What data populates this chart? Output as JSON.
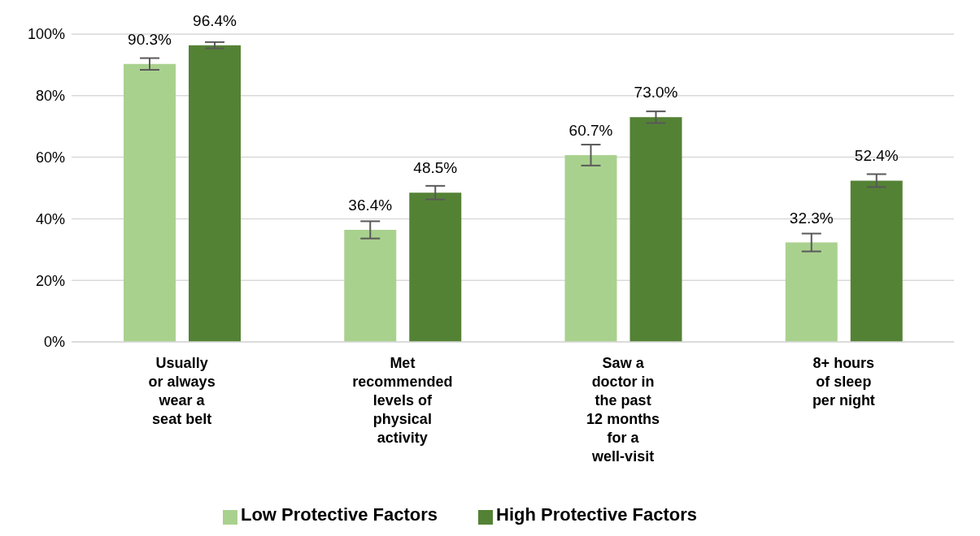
{
  "chart_data": {
    "type": "bar",
    "categories": [
      "Usually or always wear a seat belt",
      "Met recommended levels of physical activity",
      "Saw a doctor in the past 12 months for a well-visit",
      "8+ hours of sleep per night"
    ],
    "series": [
      {
        "name": "Low Protective Factors",
        "color": "#a9d18e",
        "values": [
          90.3,
          36.4,
          60.7,
          32.3
        ],
        "errors": [
          1.9,
          2.8,
          3.4,
          2.9
        ],
        "value_labels": [
          "90.3%",
          "36.4%",
          "60.7%",
          "32.3%"
        ]
      },
      {
        "name": "High Protective Factors",
        "color": "#548235",
        "values": [
          96.4,
          48.5,
          73.0,
          52.4
        ],
        "errors": [
          1.0,
          2.2,
          1.9,
          2.1
        ],
        "value_labels": [
          "96.4%",
          "48.5%",
          "73.0%",
          "52.4%"
        ]
      }
    ],
    "ylim": [
      0,
      100
    ],
    "yticks": [
      {
        "value": 0,
        "label": "0%"
      },
      {
        "value": 20,
        "label": "20%"
      },
      {
        "value": 40,
        "label": "40%"
      },
      {
        "value": 60,
        "label": "60%"
      },
      {
        "value": 80,
        "label": "80%"
      },
      {
        "value": 100,
        "label": "100%"
      }
    ],
    "grid": "y",
    "legend": "bottom"
  }
}
